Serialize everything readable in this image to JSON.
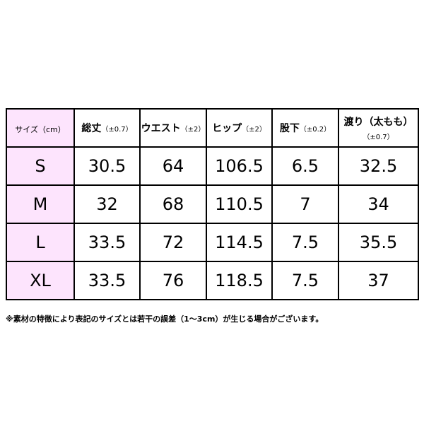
{
  "table": {
    "header": [
      {
        "name": "サイズ（cm）"
      },
      {
        "name": "総丈",
        "tolerance": "（±0.7）"
      },
      {
        "name": "ウエスト",
        "tolerance": "（±2）"
      },
      {
        "name": "ヒップ",
        "tolerance": "（±2）"
      },
      {
        "name": "股下",
        "tolerance": "（±0.2）"
      },
      {
        "name": "渡り（太もも）",
        "tolerance": "（±0.7）"
      }
    ],
    "rows": [
      [
        "S",
        30.5,
        64,
        106.5,
        6.5,
        32.5
      ],
      [
        "M",
        32,
        68,
        110.5,
        7,
        34
      ],
      [
        "L",
        33.5,
        72,
        114.5,
        7.5,
        35.5
      ],
      [
        "XL",
        33.5,
        76,
        118.5,
        7.5,
        37
      ]
    ]
  },
  "note": "※素材の特徴により表記のサイズとは若干の誤差（1～3cm）が生じる場合がございます。"
}
